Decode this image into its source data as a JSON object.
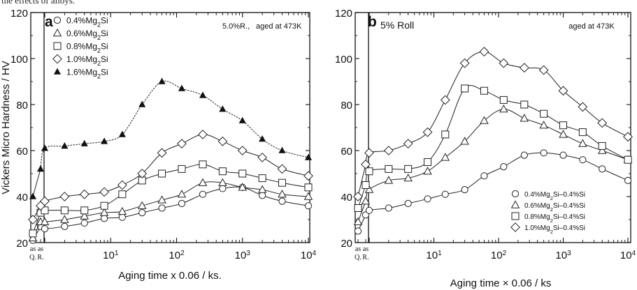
{
  "caption_text": "the effects of alloys.",
  "chart_data": [
    {
      "panel": "a",
      "type": "line",
      "ylabel": "Vickers Micro Hardness / HV",
      "xlabel": "Aging time x 0.06 / ks.",
      "annotation_1": "5.0%R.,",
      "annotation_2": "aged at 473K",
      "x_scale": "log",
      "xlim": [
        0.4,
        10000
      ],
      "ylim": [
        20,
        120
      ],
      "yticks": [
        20,
        40,
        60,
        80,
        100,
        120
      ],
      "x_special_ticks": [
        {
          "label": "as",
          "sub": "Q."
        },
        {
          "label": "as",
          "sub": "R."
        }
      ],
      "series": [
        {
          "name": "0.4%Mg2Si",
          "marker": "circle",
          "special": [
            21,
            27
          ],
          "points": [
            [
              1,
              26
            ],
            [
              2,
              27
            ],
            [
              4,
              28.5
            ],
            [
              8,
              30.5
            ],
            [
              15,
              31
            ],
            [
              30,
              33
            ],
            [
              60,
              35
            ],
            [
              120,
              37
            ],
            [
              250,
              41
            ],
            [
              500,
              43.5
            ],
            [
              1000,
              44
            ],
            [
              2000,
              40.5
            ],
            [
              4000,
              38
            ],
            [
              10000,
              36
            ]
          ]
        },
        {
          "name": "0.6%Mg2Si",
          "marker": "triangle",
          "special": [
            22,
            29
          ],
          "points": [
            [
              1,
              29
            ],
            [
              2,
              30
            ],
            [
              4,
              31.5
            ],
            [
              8,
              33
            ],
            [
              15,
              33.5
            ],
            [
              30,
              36
            ],
            [
              60,
              38.5
            ],
            [
              120,
              41
            ],
            [
              250,
              46
            ],
            [
              500,
              46
            ],
            [
              1000,
              44
            ],
            [
              2000,
              43
            ],
            [
              4000,
              41
            ],
            [
              10000,
              40
            ]
          ]
        },
        {
          "name": "0.8%Mg2Si",
          "marker": "square",
          "special": [
            24,
            33
          ],
          "points": [
            [
              1,
              34
            ],
            [
              2,
              34
            ],
            [
              4,
              34
            ],
            [
              8,
              36
            ],
            [
              15,
              41
            ],
            [
              30,
              47
            ],
            [
              60,
              50
            ],
            [
              120,
              52
            ],
            [
              250,
              54
            ],
            [
              500,
              51
            ],
            [
              1000,
              50
            ],
            [
              2000,
              48
            ],
            [
              4000,
              46
            ],
            [
              10000,
              44
            ]
          ]
        },
        {
          "name": "1.0%Mg2Si",
          "marker": "diamond",
          "special": [
            30,
            36
          ],
          "points": [
            [
              1,
              38
            ],
            [
              2,
              40
            ],
            [
              4,
              41
            ],
            [
              8,
              42
            ],
            [
              15,
              45
            ],
            [
              30,
              50
            ],
            [
              60,
              59
            ],
            [
              120,
              63
            ],
            [
              250,
              67
            ],
            [
              500,
              64
            ],
            [
              1000,
              60
            ],
            [
              2000,
              57
            ],
            [
              4000,
              52
            ],
            [
              10000,
              49
            ]
          ]
        },
        {
          "name": "1.6%Mg2Si",
          "marker": "filled-triangle",
          "special": [
            40,
            52
          ],
          "points": [
            [
              1,
              61
            ],
            [
              2,
              62
            ],
            [
              4,
              63
            ],
            [
              8,
              64
            ],
            [
              15,
              67
            ],
            [
              30,
              80
            ],
            [
              60,
              90
            ],
            [
              120,
              87
            ],
            [
              250,
              84
            ],
            [
              500,
              78
            ],
            [
              1000,
              73
            ],
            [
              2000,
              65
            ],
            [
              4000,
              60
            ],
            [
              10000,
              57
            ]
          ]
        }
      ]
    },
    {
      "panel": "b",
      "type": "line",
      "ylabel": "",
      "xlabel": "Aging time × 0.06  /  ks",
      "annotation_1": "5% Roll",
      "annotation_2": "aged at 473K",
      "x_scale": "log",
      "xlim": [
        0.4,
        10000
      ],
      "ylim": [
        20,
        120
      ],
      "yticks": [
        20,
        40,
        60,
        80,
        100,
        120
      ],
      "x_special_ticks": [
        {
          "label": "as",
          "sub": "Q."
        },
        {
          "label": "as",
          "sub": "R."
        }
      ],
      "series": [
        {
          "name": "0.4%Mg2Si–0.4%Si",
          "marker": "circle",
          "special": [
            25,
            32
          ],
          "points": [
            [
              1,
              34
            ],
            [
              2,
              35
            ],
            [
              4,
              37
            ],
            [
              8,
              39
            ],
            [
              15,
              41
            ],
            [
              30,
              43
            ],
            [
              60,
              49
            ],
            [
              120,
              53
            ],
            [
              250,
              58
            ],
            [
              500,
              59
            ],
            [
              1000,
              58
            ],
            [
              2000,
              56
            ],
            [
              4000,
              52
            ],
            [
              10000,
              47
            ]
          ]
        },
        {
          "name": "0.6%Mg2Si–0.4%Si",
          "marker": "triangle",
          "special": [
            29,
            38
          ],
          "points": [
            [
              1,
              43
            ],
            [
              2,
              47
            ],
            [
              4,
              48
            ],
            [
              8,
              51
            ],
            [
              15,
              57
            ],
            [
              30,
              64
            ],
            [
              60,
              73
            ],
            [
              120,
              78
            ],
            [
              250,
              74
            ],
            [
              500,
              71
            ],
            [
              1000,
              67
            ],
            [
              2000,
              63
            ],
            [
              4000,
              60
            ],
            [
              10000,
              56
            ]
          ]
        },
        {
          "name": "0.8%Mg2Si–0.4%Si",
          "marker": "square",
          "special": [
            35,
            45
          ],
          "points": [
            [
              1,
              51
            ],
            [
              2,
              52
            ],
            [
              4,
              52
            ],
            [
              8,
              55
            ],
            [
              15,
              67
            ],
            [
              30,
              87
            ],
            [
              60,
              86
            ],
            [
              120,
              82
            ],
            [
              250,
              80
            ],
            [
              500,
              76
            ],
            [
              1000,
              71
            ],
            [
              2000,
              68
            ],
            [
              4000,
              62
            ],
            [
              10000,
              56
            ]
          ]
        },
        {
          "name": "1.0%Mg2Si–0.4%Si",
          "marker": "diamond",
          "special": [
            40,
            54
          ],
          "points": [
            [
              1,
              59
            ],
            [
              2,
              60
            ],
            [
              4,
              63
            ],
            [
              8,
              68
            ],
            [
              15,
              82
            ],
            [
              30,
              98
            ],
            [
              60,
              103
            ],
            [
              120,
              98
            ],
            [
              250,
              96
            ],
            [
              500,
              95
            ],
            [
              1000,
              86
            ],
            [
              2000,
              79
            ],
            [
              4000,
              72
            ],
            [
              10000,
              66
            ]
          ]
        }
      ]
    }
  ]
}
